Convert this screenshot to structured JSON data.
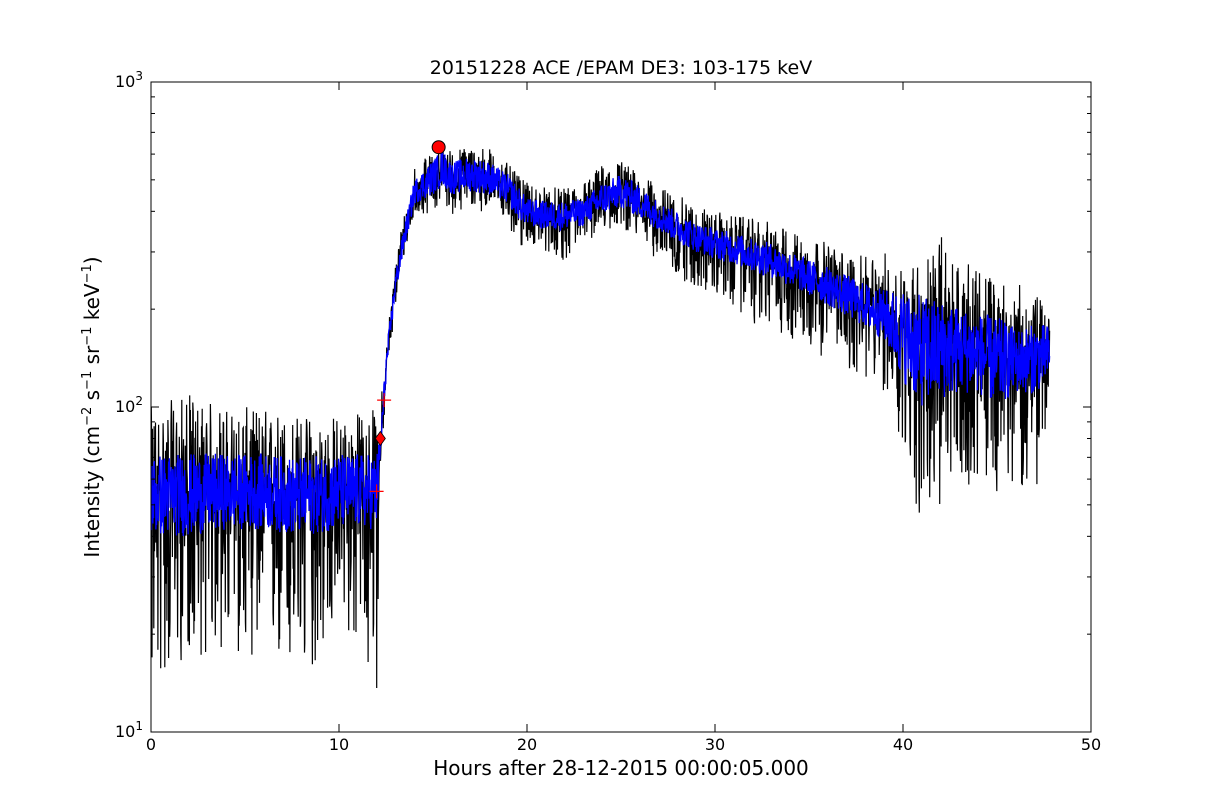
{
  "chart_data": {
    "type": "line",
    "title": "20151228 ACE /EPAM DE3: 103-175 keV",
    "xlabel": "Hours after 28-12-2015 00:00:05.000",
    "ylabel": "Intensity (cm^-2 s^-1 sr^-1 keV^-1)",
    "xlim": [
      0,
      50
    ],
    "ylim": [
      10,
      1000
    ],
    "yscale": "log",
    "x_ticks": [
      0,
      10,
      20,
      30,
      40,
      50
    ],
    "x_tick_labels": [
      "0",
      "10",
      "20",
      "30",
      "40",
      "50"
    ],
    "y_ticks": [
      10,
      100,
      1000
    ],
    "grid": false,
    "colors": {
      "raw": "#000000",
      "smoothed": "#0000ff",
      "markers": "#ff0000"
    },
    "series": [
      {
        "color": "#000000",
        "x": [
          0,
          2,
          4,
          6,
          8,
          10,
          12,
          12.2,
          12.5,
          12.8,
          13,
          13.5,
          14,
          15,
          15.5,
          16,
          17,
          18,
          19,
          19.5,
          20,
          21,
          22,
          23,
          24,
          25,
          26,
          27,
          28,
          29,
          30,
          31,
          32,
          33,
          34,
          35,
          36,
          37,
          38,
          39,
          40,
          41,
          42,
          43,
          44,
          45,
          46,
          47,
          47.8
        ],
        "values": [
          55,
          55,
          55,
          55,
          55,
          55,
          55,
          75,
          130,
          190,
          240,
          340,
          460,
          520,
          560,
          510,
          530,
          510,
          470,
          430,
          400,
          390,
          390,
          400,
          440,
          470,
          430,
          390,
          360,
          330,
          320,
          310,
          295,
          285,
          265,
          250,
          235,
          220,
          205,
          195,
          175,
          160,
          160,
          155,
          150,
          145,
          140,
          145,
          150
        ],
        "noise_min": [
          13,
          17,
          17,
          17,
          13,
          22,
          13,
          60,
          110,
          160,
          200,
          300,
          380,
          400,
          420,
          390,
          400,
          400,
          360,
          300,
          320,
          300,
          280,
          320,
          340,
          360,
          320,
          280,
          250,
          230,
          220,
          200,
          180,
          175,
          160,
          150,
          140,
          130,
          120,
          110,
          70,
          42,
          45,
          55,
          60,
          55,
          60,
          50,
          100
        ],
        "noise_max": [
          100,
          110,
          100,
          100,
          95,
          95,
          100,
          100,
          160,
          220,
          280,
          420,
          560,
          600,
          640,
          620,
          640,
          630,
          560,
          520,
          490,
          480,
          470,
          500,
          560,
          580,
          520,
          480,
          450,
          420,
          400,
          390,
          380,
          370,
          350,
          340,
          320,
          300,
          290,
          300,
          290,
          280,
          340,
          280,
          270,
          250,
          240,
          230,
          190
        ]
      },
      {
        "color": "#0000ff",
        "x": [
          0,
          2,
          4,
          6,
          8,
          10,
          12,
          12.2,
          12.5,
          12.8,
          13,
          13.5,
          14,
          15,
          15.5,
          16,
          17,
          18,
          19,
          19.5,
          20,
          21,
          22,
          23,
          24,
          25,
          26,
          27,
          28,
          29,
          30,
          31,
          32,
          33,
          34,
          35,
          36,
          37,
          38,
          39,
          40,
          41,
          42,
          43,
          44,
          45,
          46,
          47,
          47.8
        ],
        "values": [
          55,
          55,
          55,
          55,
          55,
          55,
          55,
          75,
          130,
          190,
          240,
          340,
          460,
          520,
          560,
          510,
          530,
          510,
          470,
          430,
          400,
          390,
          390,
          400,
          440,
          470,
          430,
          390,
          360,
          330,
          320,
          310,
          295,
          285,
          265,
          250,
          235,
          220,
          205,
          195,
          175,
          160,
          160,
          155,
          150,
          145,
          140,
          145,
          150
        ],
        "band_min": [
          40,
          40,
          42,
          42,
          40,
          42,
          42,
          65,
          120,
          175,
          220,
          310,
          420,
          450,
          480,
          450,
          460,
          450,
          420,
          380,
          360,
          350,
          350,
          360,
          390,
          410,
          380,
          350,
          320,
          300,
          285,
          275,
          260,
          250,
          235,
          220,
          205,
          190,
          175,
          160,
          120,
          100,
          105,
          110,
          110,
          100,
          110,
          110,
          120
        ],
        "band_max": [
          72,
          72,
          72,
          72,
          70,
          72,
          72,
          85,
          145,
          205,
          260,
          370,
          500,
          580,
          620,
          570,
          590,
          570,
          520,
          480,
          440,
          430,
          430,
          440,
          490,
          520,
          480,
          430,
          400,
          370,
          355,
          345,
          330,
          320,
          300,
          285,
          270,
          255,
          240,
          230,
          230,
          220,
          215,
          205,
          195,
          190,
          175,
          180,
          180
        ]
      }
    ],
    "markers": [
      {
        "shape": "circle",
        "color": "#ff0000",
        "x": 15.3,
        "y": 630
      },
      {
        "shape": "diamond",
        "color": "#ff0000",
        "x": 12.2,
        "y": 80
      },
      {
        "shape": "plus",
        "color": "#ff0000",
        "x": 12.4,
        "y": 105
      },
      {
        "shape": "plus",
        "color": "#ff0000",
        "x": 12.0,
        "y": 55
      }
    ]
  }
}
